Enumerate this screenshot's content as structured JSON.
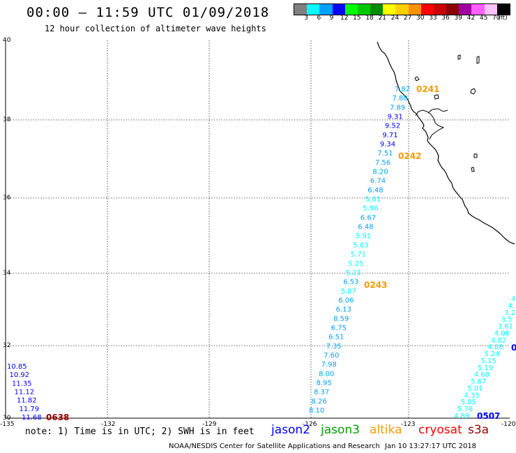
{
  "header": {
    "title": "00:00 – 11:59 UTC 01/09/2018",
    "subtitle": "12 hour collection of altimeter wave heights"
  },
  "scale": {
    "labels": [
      "3",
      "6",
      "9",
      "12",
      "15",
      "18",
      "21",
      "24",
      "27",
      "30",
      "33",
      "36",
      "39",
      "42",
      "45",
      "70",
      "(ft)"
    ],
    "colors": [
      "#808080",
      "#00ffff",
      "#00a0ff",
      "#0000ff",
      "#00ff00",
      "#00c800",
      "#008c00",
      "#ffff00",
      "#ffd000",
      "#ff9000",
      "#ff0000",
      "#c80000",
      "#8c0000",
      "#a000a0",
      "#ff60ff",
      "#ffc0ff",
      "#000000"
    ]
  },
  "axes": {
    "lat_labels": [
      "40",
      "38",
      "36",
      "34",
      "32",
      "30"
    ],
    "lon_labels": [
      "-135",
      "-132",
      "-129",
      "-126",
      "-123",
      "-120"
    ]
  },
  "passes": {
    "p0241": "0241",
    "p0242": "0242",
    "p0243": "0243",
    "p0638": "0638",
    "p0507": "0507",
    "p0right": "0"
  },
  "swh": {
    "track_main": [
      "7.82",
      "7.80",
      "7.89",
      "9.31",
      "9.52",
      "9.71",
      "9.34",
      "7.51",
      "7.56",
      "8.20",
      "6.74",
      "6.48",
      "5.81",
      "5.96",
      "6.67",
      "6.48",
      "5.91",
      "5.63",
      "5.71",
      "5.25",
      "5.21",
      "6.53",
      "5.87",
      "6.06",
      "6.13",
      "8.59",
      "6.75",
      "6.51",
      "7.35",
      "7.60",
      "7.98",
      "8.00",
      "8.95",
      "8.37",
      "8.26",
      "8.10"
    ],
    "track_left": [
      "10.85",
      "10.92",
      "11.35",
      "11.12",
      "11.82",
      "11.79",
      "11.68"
    ],
    "track_right": [
      "4",
      "4.",
      "3.2",
      "3.5",
      "3.61",
      "4.06",
      "4.82",
      "4.88",
      "5.24",
      "5.15",
      "5.19",
      "4.68",
      "5.67",
      "5.01",
      "4.35",
      "5.05",
      "5.76",
      "4.89"
    ]
  },
  "legend": {
    "note": "note: 1) Time is in UTC; 2) SWH is in feet",
    "satellites": [
      {
        "name": "jason2",
        "color": "#0000ff"
      },
      {
        "name": "jason3",
        "color": "#00a000"
      },
      {
        "name": "altika",
        "color": "#ff9900"
      },
      {
        "name": "cryosat",
        "color": "#ff0000"
      },
      {
        "name": "s3a",
        "color": "#990000"
      }
    ]
  },
  "footer": {
    "credit": "NOAA/NESDIS Center for Satellite Applications and Research",
    "timestamp": "Jan 10 13:27:17 UTC 2018"
  }
}
